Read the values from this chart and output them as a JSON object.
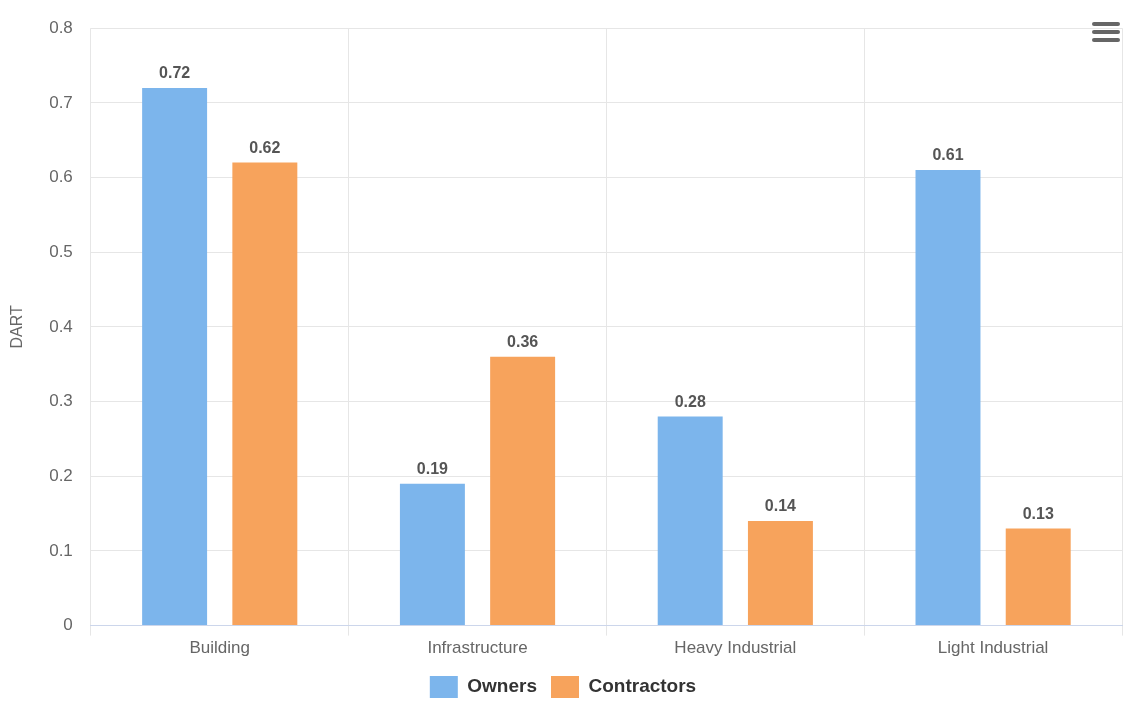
{
  "chart_data": {
    "type": "bar",
    "ylabel": "DART",
    "categories": [
      "Building",
      "Infrastructure",
      "Heavy Industrial",
      "Light Industrial"
    ],
    "series": [
      {
        "name": "Owners",
        "color": "#7cb5ec",
        "values": [
          0.72,
          0.19,
          0.28,
          0.61
        ]
      },
      {
        "name": "Contractors",
        "color": "#f7a35c",
        "values": [
          0.62,
          0.36,
          0.14,
          0.13
        ]
      }
    ],
    "ylim": [
      0,
      0.8
    ],
    "yticks": [
      0,
      0.1,
      0.2,
      0.3,
      0.4,
      0.5,
      0.6,
      0.7,
      0.8
    ],
    "grid": true,
    "legend": "bottom",
    "data_labels": true
  }
}
